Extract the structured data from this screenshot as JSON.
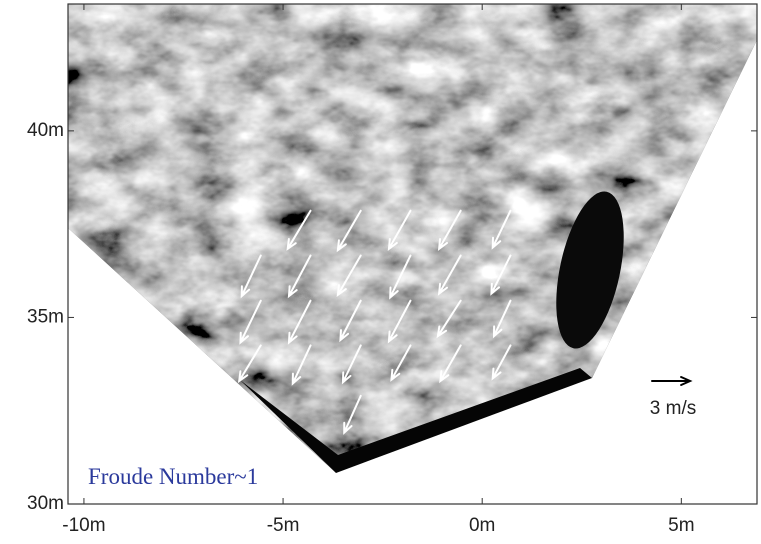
{
  "chart_data": {
    "type": "quiver",
    "annotation": "Froude Number~1",
    "xlim": [
      -10.4,
      6.9
    ],
    "ylim": [
      30,
      43.4
    ],
    "xticks": [
      {
        "value": -10,
        "label": "-10m"
      },
      {
        "value": -5,
        "label": "-5m"
      },
      {
        "value": 0,
        "label": "0m"
      },
      {
        "value": 5,
        "label": "5m"
      }
    ],
    "yticks": [
      {
        "value": 30,
        "label": "30m"
      },
      {
        "value": 35,
        "label": "35m"
      },
      {
        "value": 40,
        "label": "40m"
      }
    ],
    "color": "#ffffff",
    "x": [
      -4.31,
      -3.05,
      -1.8,
      -0.54,
      0.71,
      -5.56,
      -4.31,
      -3.05,
      -1.8,
      -0.54,
      0.71,
      -5.56,
      -4.31,
      -3.05,
      -1.8,
      -0.54,
      0.71,
      -5.56,
      -4.31,
      -3.05,
      -1.8,
      -0.54,
      0.71,
      -3.05
    ],
    "y": [
      37.86,
      37.86,
      37.86,
      37.86,
      37.86,
      36.66,
      36.66,
      36.66,
      36.66,
      36.66,
      36.66,
      35.45,
      35.45,
      35.45,
      35.45,
      35.45,
      35.45,
      34.25,
      34.25,
      34.25,
      34.25,
      34.25,
      34.25,
      32.9
    ],
    "u": [
      -1.8,
      -1.8,
      -1.7,
      -1.7,
      -1.4,
      -1.5,
      -1.7,
      -1.8,
      -1.6,
      -1.7,
      -1.5,
      -1.6,
      -1.7,
      -1.6,
      -1.7,
      -1.8,
      -1.3,
      -1.7,
      -1.4,
      -1.4,
      -1.5,
      -1.6,
      -1.4,
      -1.3
    ],
    "v": [
      -3.0,
      -3.1,
      -3.0,
      -3.0,
      -2.9,
      -3.2,
      -3.2,
      -3.1,
      -3.3,
      -3.0,
      -3.0,
      -3.3,
      -3.3,
      -3.1,
      -3.2,
      -2.8,
      -2.8,
      -2.8,
      -3.0,
      -2.9,
      -2.7,
      -2.8,
      -2.6,
      -2.9
    ],
    "quiver_key": {
      "value": 3,
      "label": "3 m/s"
    }
  }
}
